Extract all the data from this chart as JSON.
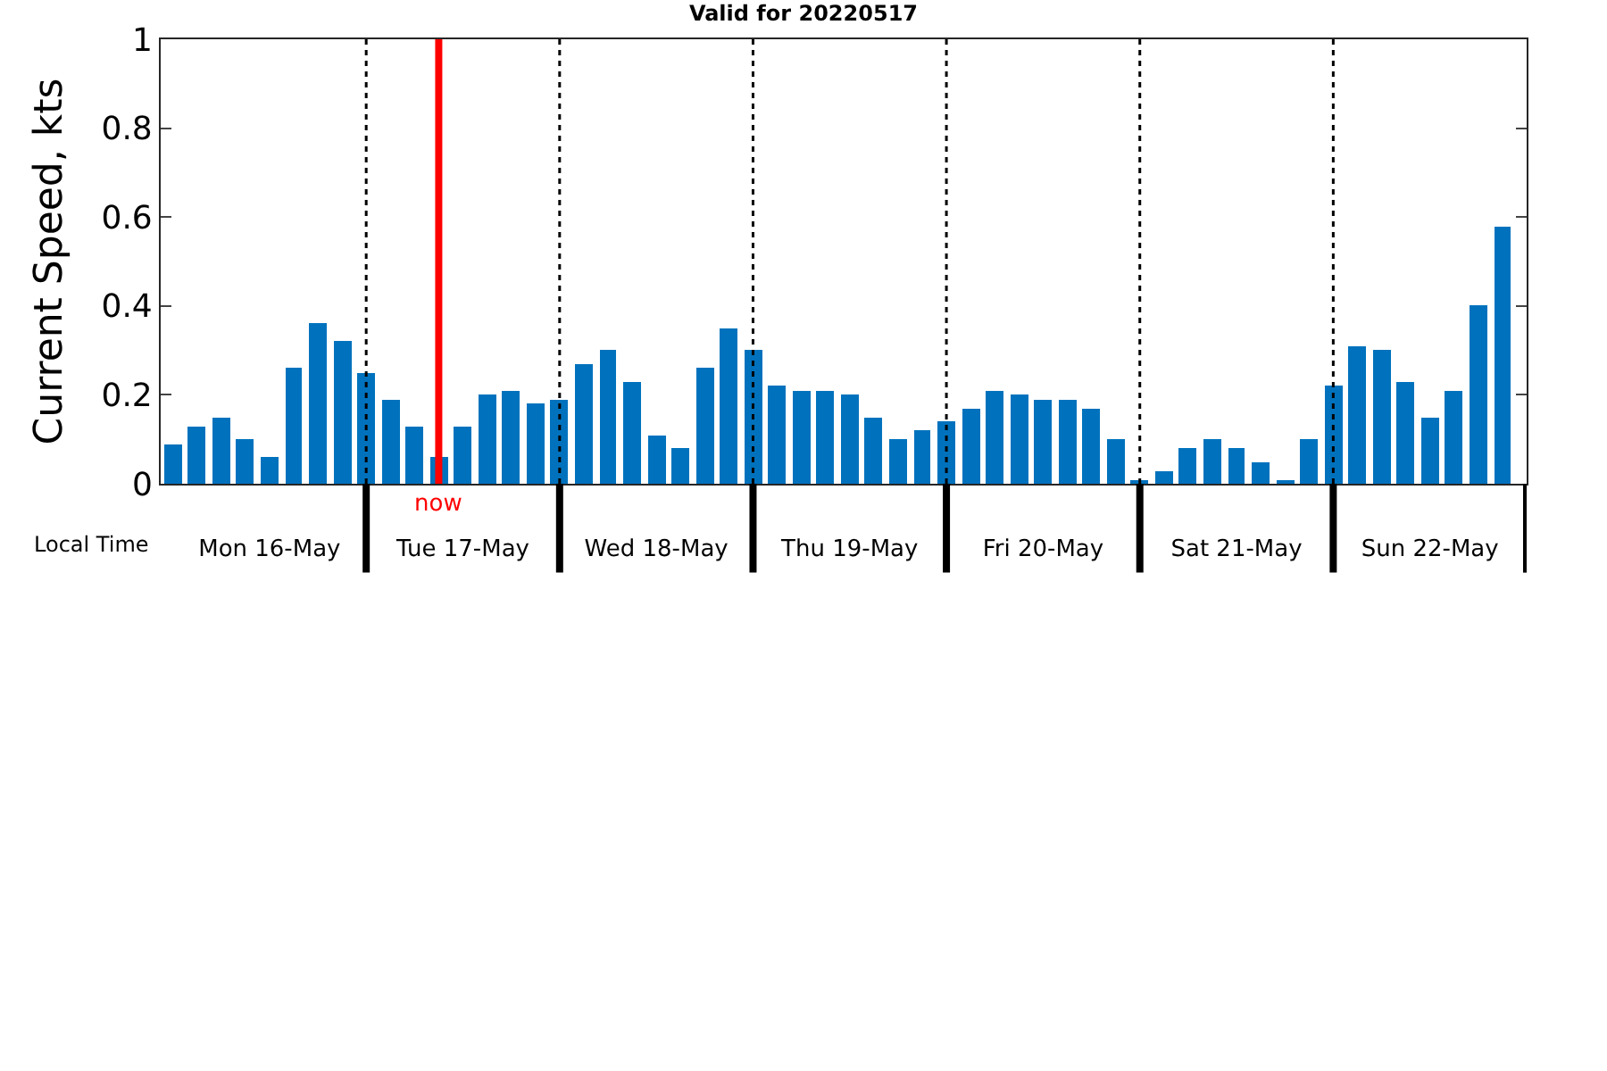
{
  "chart_data": {
    "type": "bar",
    "title": "Valid for 20220517",
    "ylabel": "Current Speed, kts",
    "annotations": [
      "Local Time"
    ],
    "x": [
      "2022-05-16T00:00",
      "2022-05-16T03:00",
      "2022-05-16T06:00",
      "2022-05-16T09:00",
      "2022-05-16T12:00",
      "2022-05-16T15:00",
      "2022-05-16T18:00",
      "2022-05-16T21:00",
      "2022-05-17T00:00",
      "2022-05-17T03:00",
      "2022-05-17T06:00",
      "2022-05-17T09:00",
      "2022-05-17T12:00",
      "2022-05-17T15:00",
      "2022-05-17T18:00",
      "2022-05-17T21:00",
      "2022-05-18T00:00",
      "2022-05-18T03:00",
      "2022-05-18T06:00",
      "2022-05-18T09:00",
      "2022-05-18T12:00",
      "2022-05-18T15:00",
      "2022-05-18T18:00",
      "2022-05-18T21:00",
      "2022-05-19T00:00",
      "2022-05-19T03:00",
      "2022-05-19T06:00",
      "2022-05-19T09:00",
      "2022-05-19T12:00",
      "2022-05-19T15:00",
      "2022-05-19T18:00",
      "2022-05-19T21:00",
      "2022-05-20T00:00",
      "2022-05-20T03:00",
      "2022-05-20T06:00",
      "2022-05-20T09:00",
      "2022-05-20T12:00",
      "2022-05-20T15:00",
      "2022-05-20T18:00",
      "2022-05-20T21:00",
      "2022-05-21T00:00",
      "2022-05-21T03:00",
      "2022-05-21T06:00",
      "2022-05-21T09:00",
      "2022-05-21T12:00",
      "2022-05-21T15:00",
      "2022-05-21T18:00",
      "2022-05-21T21:00",
      "2022-05-22T00:00",
      "2022-05-22T03:00",
      "2022-05-22T06:00",
      "2022-05-22T09:00",
      "2022-05-22T12:00",
      "2022-05-22T15:00",
      "2022-05-22T18:00",
      "2022-05-22T21:00"
    ],
    "series": [
      {
        "color": "#0072bd",
        "values": [
          0.09,
          0.13,
          0.15,
          0.1,
          0.06,
          0.26,
          0.36,
          0.32,
          0.25,
          0.19,
          0.13,
          0.06,
          0.13,
          0.2,
          0.21,
          0.18,
          0.19,
          0.27,
          0.3,
          0.23,
          0.11,
          0.08,
          0.26,
          0.35,
          0.3,
          0.22,
          0.21,
          0.21,
          0.2,
          0.15,
          0.1,
          0.12,
          0.14,
          0.17,
          0.21,
          0.2,
          0.19,
          0.19,
          0.17,
          0.1,
          0.01,
          0.03,
          0.08,
          0.1,
          0.08,
          0.05,
          0.01,
          0.1,
          0.22,
          0.31,
          0.3,
          0.23,
          0.15,
          0.21,
          0.4,
          0.58
        ]
      }
    ],
    "xlim": [
      "2022-05-15T22:30",
      "2022-05-23T00:00"
    ],
    "xticks": [
      {
        "value": "2022-05-16T12:00",
        "label": "Mon 16-May"
      },
      {
        "value": "2022-05-17T00:00",
        "label": null
      },
      {
        "value": "2022-05-17T12:00",
        "label": "Tue 17-May"
      },
      {
        "value": "2022-05-18T00:00",
        "label": null
      },
      {
        "value": "2022-05-18T12:00",
        "label": "Wed 18-May"
      },
      {
        "value": "2022-05-19T00:00",
        "label": null
      },
      {
        "value": "2022-05-19T12:00",
        "label": "Thu 19-May"
      },
      {
        "value": "2022-05-20T00:00",
        "label": null
      },
      {
        "value": "2022-05-20T12:00",
        "label": "Fri 20-May"
      },
      {
        "value": "2022-05-21T00:00",
        "label": null
      },
      {
        "value": "2022-05-21T12:00",
        "label": "Sat 21-May"
      },
      {
        "value": "2022-05-22T00:00",
        "label": null
      },
      {
        "value": "2022-05-22T12:00",
        "label": "Sun 22-May"
      },
      {
        "value": "2022-05-23T00:00",
        "label": null
      }
    ],
    "ylim": [
      0,
      1
    ],
    "yticks": [
      0,
      0.2,
      0.4,
      0.6,
      0.8,
      1
    ],
    "ref_lines": [
      {
        "axis": "x",
        "value": "2022-05-17T00:00",
        "color": "#000000",
        "line_style": "dotted"
      },
      {
        "axis": "x",
        "value": "2022-05-18T00:00",
        "color": "#000000",
        "line_style": "dotted"
      },
      {
        "axis": "x",
        "value": "2022-05-19T00:00",
        "color": "#000000",
        "line_style": "dotted"
      },
      {
        "axis": "x",
        "value": "2022-05-20T00:00",
        "color": "#000000",
        "line_style": "dotted"
      },
      {
        "axis": "x",
        "value": "2022-05-21T00:00",
        "color": "#000000",
        "line_style": "dotted"
      },
      {
        "axis": "x",
        "value": "2022-05-22T00:00",
        "color": "#000000",
        "line_style": "dotted"
      },
      {
        "axis": "x",
        "value": "2022-05-17T09:00",
        "label": "now",
        "color": "#ff0000",
        "line_style": "solid"
      }
    ]
  }
}
